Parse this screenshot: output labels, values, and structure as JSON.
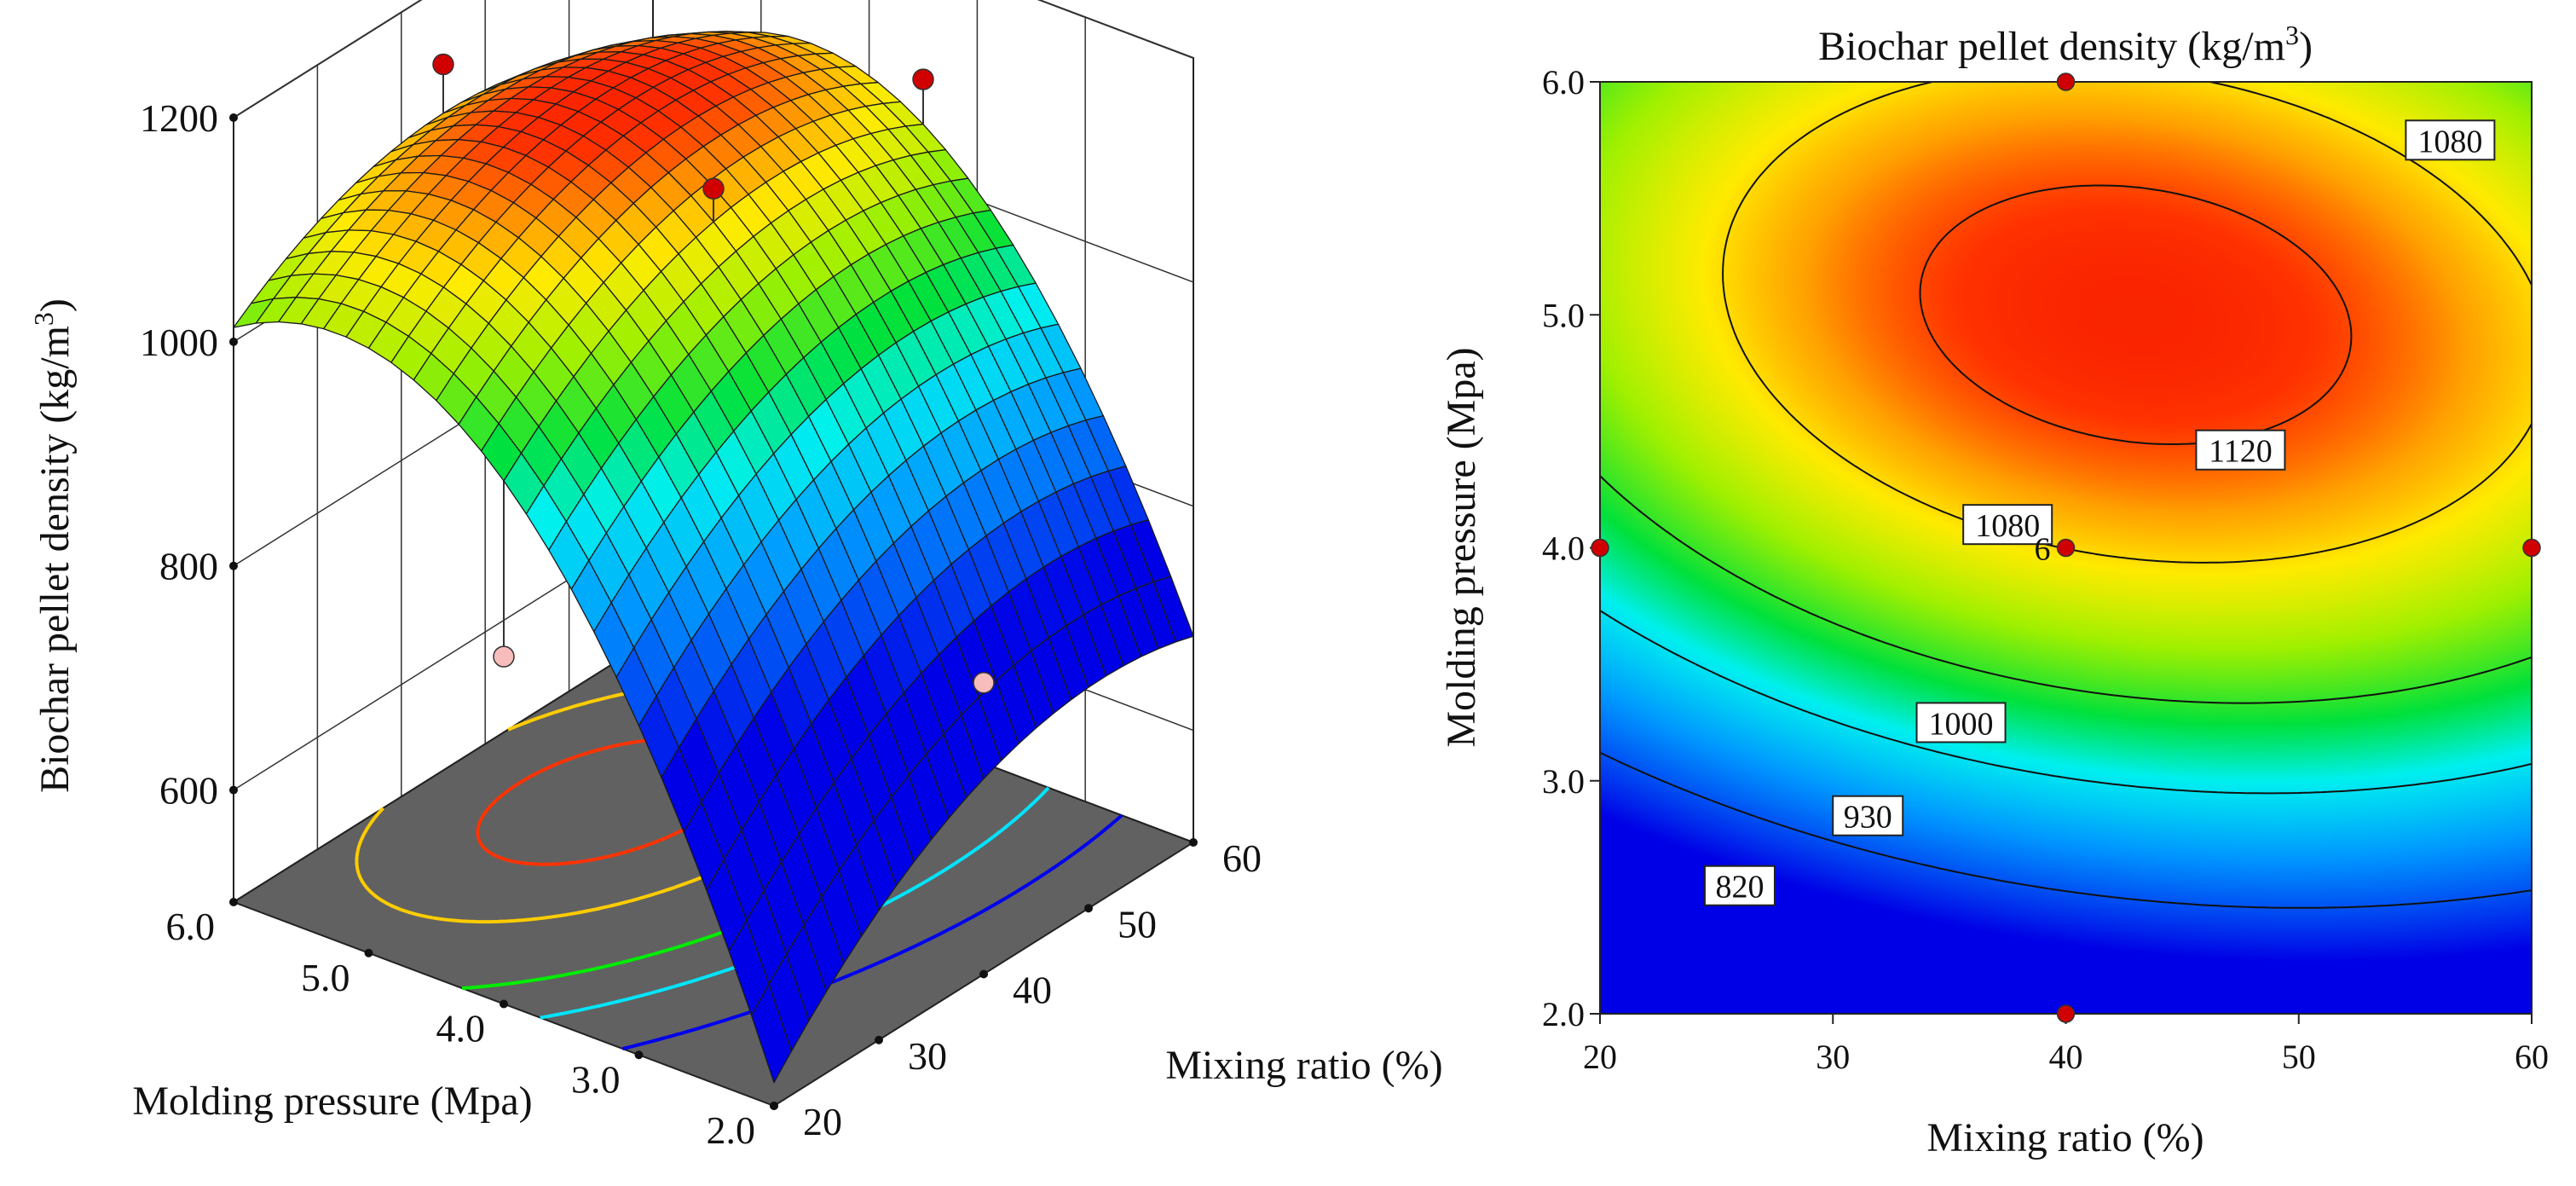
{
  "chart_data": [
    {
      "type": "surface",
      "title": "",
      "zlabel": "Biochar pellet density  (kg/m3)",
      "zlabel_parts": [
        "Biochar pellet density  (kg/m",
        "3",
        ")"
      ],
      "xlabel": "Mixing ratio (%)",
      "ylabel": "Molding pressure (Mpa)",
      "x_range": [
        20,
        60
      ],
      "y_range": [
        2.0,
        6.0
      ],
      "z_range": [
        500,
        1200
      ],
      "x_ticks": [
        "20",
        "30",
        "40",
        "50",
        "60"
      ],
      "x_tick_values": [
        20,
        30,
        40,
        50,
        60
      ],
      "y_ticks": [
        "2.0",
        "3.0",
        "4.0",
        "5.0",
        "6.0"
      ],
      "y_tick_values": [
        2,
        3,
        4,
        5,
        6
      ],
      "z_ticks": [
        "600",
        "800",
        "1000",
        "1200"
      ],
      "z_tick_values": [
        600,
        800,
        1000,
        1200
      ],
      "grid": true,
      "floor_contours": [
        {
          "level": 1120,
          "color": "#ff3300"
        },
        {
          "level": 1080,
          "color": "#ffcc00"
        },
        {
          "level": 1000,
          "color": "#00ee00"
        },
        {
          "level": 930,
          "color": "#00e5ff"
        },
        {
          "level": 820,
          "color": "#0000ee"
        }
      ],
      "design_points": [
        {
          "x": 40,
          "y": 6.0,
          "z": 1130,
          "above": true
        },
        {
          "x": 40,
          "y": 4.0,
          "z": 1110,
          "above": true
        },
        {
          "x": 60,
          "y": 4.0,
          "z": 1090,
          "above": true
        },
        {
          "x": 20,
          "y": 4.0,
          "z": 810,
          "above": false
        },
        {
          "x": 40,
          "y": 2.0,
          "z": 760,
          "above": false
        }
      ]
    },
    {
      "type": "contour",
      "title": "Biochar pellet density  (kg/m3)",
      "title_parts": [
        "Biochar pellet density  (kg/m",
        "3",
        ")"
      ],
      "xlabel": "Mixing ratio (%)",
      "ylabel": "Molding pressure (Mpa)",
      "xlim": [
        20,
        60
      ],
      "ylim": [
        2.0,
        6.0
      ],
      "x_ticks": [
        "20",
        "30",
        "40",
        "50",
        "60"
      ],
      "x_tick_values": [
        20,
        30,
        40,
        50,
        60
      ],
      "y_ticks": [
        "2.0",
        "3.0",
        "4.0",
        "5.0",
        "6.0"
      ],
      "y_tick_values": [
        2,
        3,
        4,
        5,
        6
      ],
      "contour_levels": [
        820,
        930,
        1000,
        1080,
        1120
      ],
      "contour_labels": [
        {
          "text": "820",
          "x": 26.0,
          "y": 2.55
        },
        {
          "text": "930",
          "x": 31.5,
          "y": 2.85
        },
        {
          "text": "1000",
          "x": 35.5,
          "y": 3.25
        },
        {
          "text": "1080",
          "x": 37.5,
          "y": 4.1
        },
        {
          "text": "1080",
          "x": 56.5,
          "y": 5.75
        },
        {
          "text": "1120",
          "x": 47.5,
          "y": 4.42
        }
      ],
      "design_points": [
        {
          "x": 40,
          "y": 6.0
        },
        {
          "x": 40,
          "y": 2.0
        },
        {
          "x": 20,
          "y": 4.0
        },
        {
          "x": 60,
          "y": 4.0
        },
        {
          "x": 40,
          "y": 4.0,
          "label": "6"
        }
      ]
    }
  ]
}
